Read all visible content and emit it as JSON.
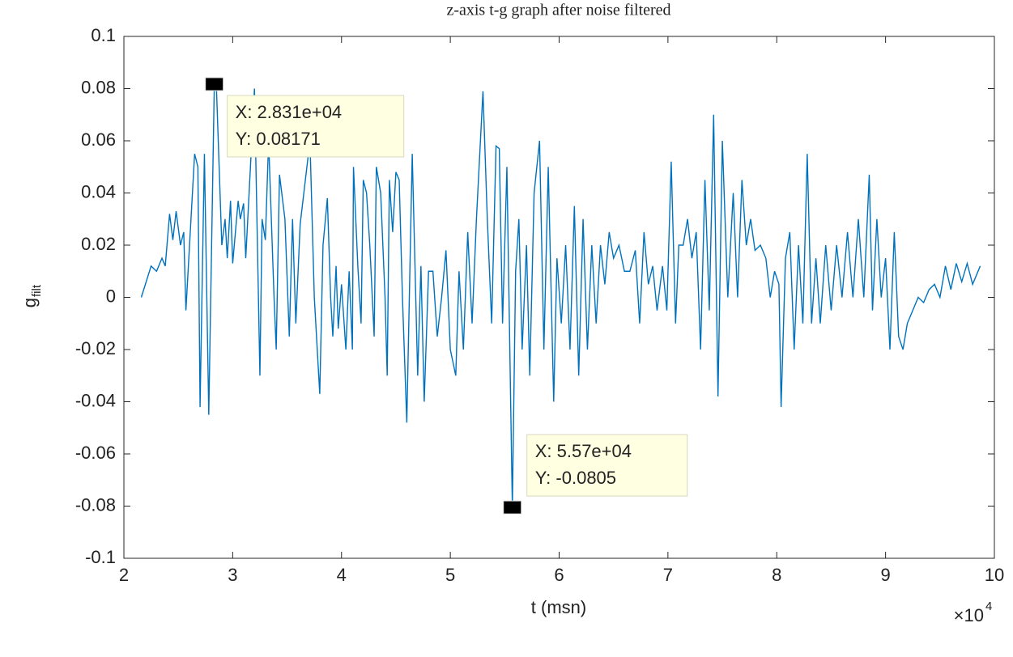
{
  "chart_data": {
    "type": "line",
    "title": "z-axis t-g graph after noise filtered",
    "xlabel": "t (msn)",
    "ylabel": "g",
    "ylabel_sub": "filt",
    "x_multiplier": {
      "base": "×10",
      "exponent": "4"
    },
    "xlim": [
      2,
      10
    ],
    "xticks": [
      2,
      3,
      4,
      5,
      6,
      7,
      8,
      9,
      10
    ],
    "ylim": [
      -0.1,
      0.1
    ],
    "yticks": [
      -0.1,
      -0.08,
      -0.06,
      -0.04,
      -0.02,
      0,
      0.02,
      0.04,
      0.06,
      0.08,
      0.1
    ],
    "series": [
      {
        "color": "#0072bd",
        "x": [
          2.16,
          2.25,
          2.3,
          2.35,
          2.38,
          2.42,
          2.45,
          2.48,
          2.52,
          2.55,
          2.57,
          2.65,
          2.68,
          2.7,
          2.74,
          2.78,
          2.831,
          2.85,
          2.9,
          2.93,
          2.95,
          2.98,
          3.0,
          3.05,
          3.07,
          3.1,
          3.12,
          3.2,
          3.25,
          3.27,
          3.3,
          3.33,
          3.38,
          3.4,
          3.43,
          3.48,
          3.52,
          3.55,
          3.58,
          3.62,
          3.71,
          3.75,
          3.8,
          3.83,
          3.87,
          3.9,
          3.92,
          3.95,
          3.97,
          4.0,
          4.04,
          4.07,
          4.1,
          4.11,
          4.15,
          4.18,
          4.2,
          4.23,
          4.26,
          4.3,
          4.32,
          4.36,
          4.4,
          4.42,
          4.44,
          4.47,
          4.5,
          4.53,
          4.56,
          4.6,
          4.65,
          4.7,
          4.73,
          4.76,
          4.8,
          4.84,
          4.88,
          4.92,
          4.96,
          5.0,
          5.05,
          5.08,
          5.12,
          5.16,
          5.2,
          5.24,
          5.3,
          5.34,
          5.38,
          5.42,
          5.45,
          5.48,
          5.52,
          5.57,
          5.6,
          5.63,
          5.66,
          5.7,
          5.73,
          5.77,
          5.82,
          5.86,
          5.9,
          5.95,
          5.98,
          6.02,
          6.06,
          6.1,
          6.14,
          6.18,
          6.22,
          6.26,
          6.3,
          6.34,
          6.38,
          6.42,
          6.46,
          6.5,
          6.55,
          6.6,
          6.65,
          6.7,
          6.74,
          6.78,
          6.82,
          6.86,
          6.9,
          6.95,
          6.99,
          7.03,
          7.07,
          7.1,
          7.14,
          7.18,
          7.22,
          7.26,
          7.3,
          7.34,
          7.38,
          7.42,
          7.46,
          7.5,
          7.55,
          7.6,
          7.64,
          7.68,
          7.72,
          7.76,
          7.8,
          7.85,
          7.9,
          7.94,
          7.98,
          8.02,
          8.04,
          8.08,
          8.12,
          8.16,
          8.2,
          8.24,
          8.28,
          8.32,
          8.36,
          8.4,
          8.45,
          8.5,
          8.55,
          8.6,
          8.65,
          8.7,
          8.75,
          8.8,
          8.85,
          8.88,
          8.92,
          8.96,
          9.0,
          9.04,
          9.08,
          9.12,
          9.16,
          9.2,
          9.25,
          9.3,
          9.35,
          9.4,
          9.45,
          9.5,
          9.55,
          9.6,
          9.65,
          9.7,
          9.75,
          9.8,
          9.87
        ],
        "values": [
          0,
          0.012,
          0.01,
          0.015,
          0.012,
          0.032,
          0.022,
          0.033,
          0.02,
          0.025,
          -0.005,
          0.055,
          0.05,
          -0.042,
          0.055,
          -0.045,
          0.08171,
          0.081,
          0.02,
          0.03,
          0.015,
          0.037,
          0.013,
          0.037,
          0.03,
          0.036,
          0.015,
          0.08,
          -0.03,
          0.03,
          0.022,
          0.06,
          0,
          -0.02,
          0.047,
          0.03,
          -0.015,
          0.03,
          -0.01,
          0.028,
          0.06,
          0,
          -0.037,
          0.02,
          0.038,
          0,
          -0.015,
          0.012,
          -0.012,
          0.005,
          -0.02,
          0.01,
          -0.02,
          0.05,
          0.012,
          -0.01,
          0.045,
          0.04,
          0.02,
          -0.015,
          0.05,
          0.04,
          0,
          -0.03,
          0.045,
          0.025,
          0.048,
          0.045,
          0,
          -0.048,
          0.055,
          -0.03,
          0.012,
          -0.04,
          0.01,
          0.01,
          -0.015,
          0,
          0.018,
          -0.02,
          -0.03,
          0.01,
          -0.02,
          0.025,
          -0.01,
          0.03,
          0.079,
          0.03,
          -0.01,
          0.058,
          0.057,
          -0.01,
          0.05,
          -0.0805,
          0.01,
          0.03,
          -0.02,
          0.02,
          -0.03,
          0.04,
          0.06,
          -0.02,
          0.05,
          -0.04,
          0.015,
          -0.01,
          0.02,
          -0.02,
          0.035,
          -0.03,
          0.03,
          -0.02,
          0.02,
          -0.01,
          0.02,
          0.005,
          0.025,
          0.015,
          0.02,
          0.01,
          0.01,
          0.018,
          -0.01,
          0.025,
          0.005,
          0.012,
          -0.005,
          0.012,
          -0.005,
          0.052,
          -0.01,
          0.02,
          0.02,
          0.03,
          0.015,
          0.025,
          -0.02,
          0.045,
          -0.005,
          0.07,
          -0.038,
          0.06,
          0,
          0.04,
          0,
          0.045,
          0.02,
          0.03,
          0.018,
          0.02,
          0.015,
          0,
          0.01,
          0.005,
          -0.042,
          0.015,
          0.025,
          -0.02,
          0.02,
          -0.01,
          0.055,
          -0.01,
          0.015,
          -0.01,
          0.02,
          -0.005,
          0.02,
          0,
          0.025,
          0,
          0.03,
          0,
          0.047,
          -0.005,
          0.03,
          0,
          0.015,
          -0.02,
          0.025,
          -0.015,
          -0.02,
          -0.01,
          -0.005,
          0,
          -0.002,
          0.003,
          0.005,
          0,
          0.012,
          0.003,
          0.013,
          0.006,
          0.013,
          0.005,
          0.012
        ]
      }
    ],
    "datatips": [
      {
        "x": 2.831,
        "y": 0.08171,
        "text": [
          "X: 2.831e+04",
          "Y: 0.08171"
        ]
      },
      {
        "x": 5.57,
        "y": -0.0805,
        "text": [
          "X: 5.57e+04",
          "Y: -0.0805"
        ]
      }
    ]
  }
}
